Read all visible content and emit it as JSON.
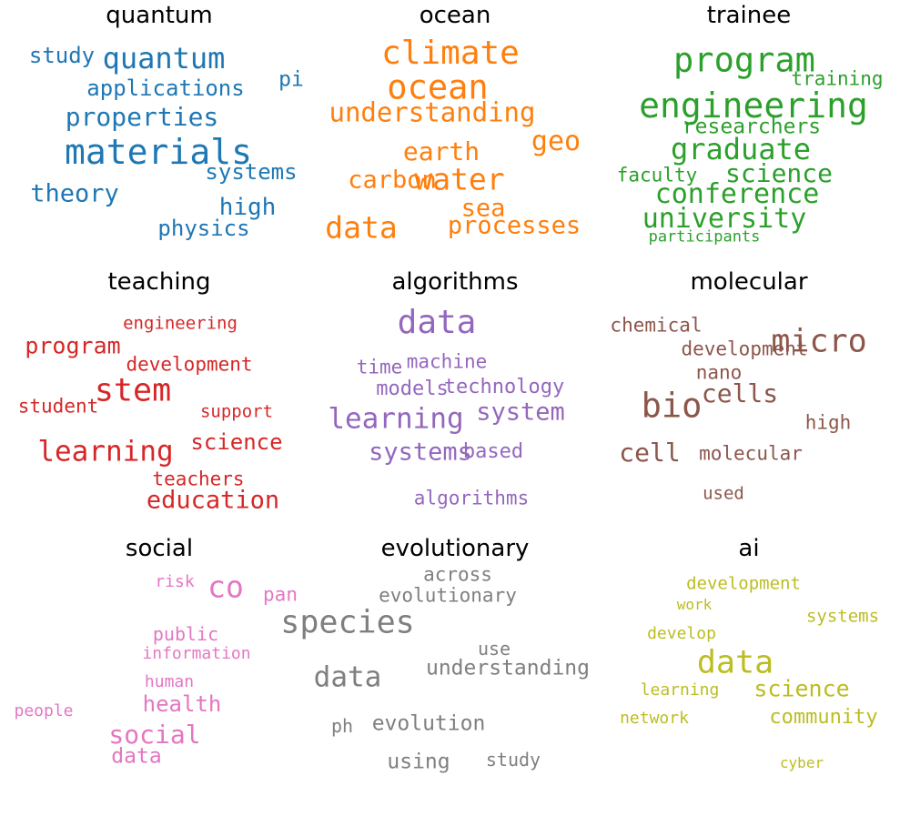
{
  "chart_data": {
    "type": "wordcloud",
    "panels": [
      {
        "title": "quantum",
        "color": "#1f77b4",
        "words": [
          {
            "text": "materials",
            "weight": 1.0
          },
          {
            "text": "quantum",
            "weight": 0.85
          },
          {
            "text": "properties",
            "weight": 0.72
          },
          {
            "text": "theory",
            "weight": 0.68
          },
          {
            "text": "high",
            "weight": 0.66
          },
          {
            "text": "applications",
            "weight": 0.6
          },
          {
            "text": "study",
            "weight": 0.6
          },
          {
            "text": "systems",
            "weight": 0.6
          },
          {
            "text": "physics",
            "weight": 0.6
          },
          {
            "text": "pi",
            "weight": 0.58
          }
        ]
      },
      {
        "title": "ocean",
        "color": "#ff7f0e",
        "words": [
          {
            "text": "ocean",
            "weight": 1.0
          },
          {
            "text": "climate",
            "weight": 0.95
          },
          {
            "text": "water",
            "weight": 0.88
          },
          {
            "text": "data",
            "weight": 0.88
          },
          {
            "text": "understanding",
            "weight": 0.8
          },
          {
            "text": "geo",
            "weight": 0.8
          },
          {
            "text": "earth",
            "weight": 0.75
          },
          {
            "text": "carbon",
            "weight": 0.72
          },
          {
            "text": "sea",
            "weight": 0.72
          },
          {
            "text": "processes",
            "weight": 0.72
          }
        ]
      },
      {
        "title": "trainee",
        "color": "#2ca02c",
        "words": [
          {
            "text": "engineering",
            "weight": 1.0
          },
          {
            "text": "program",
            "weight": 1.0
          },
          {
            "text": "graduate",
            "weight": 0.88
          },
          {
            "text": "conference",
            "weight": 0.85
          },
          {
            "text": "university",
            "weight": 0.85
          },
          {
            "text": "science",
            "weight": 0.8
          },
          {
            "text": "researchers",
            "weight": 0.65
          },
          {
            "text": "faculty",
            "weight": 0.58
          },
          {
            "text": "training",
            "weight": 0.58
          },
          {
            "text": "participants",
            "weight": 0.48
          }
        ]
      },
      {
        "title": "teaching",
        "color": "#d62728",
        "words": [
          {
            "text": "stem",
            "weight": 1.0
          },
          {
            "text": "learning",
            "weight": 0.9
          },
          {
            "text": "education",
            "weight": 0.78
          },
          {
            "text": "program",
            "weight": 0.75
          },
          {
            "text": "science",
            "weight": 0.72
          },
          {
            "text": "development",
            "weight": 0.65
          },
          {
            "text": "student",
            "weight": 0.65
          },
          {
            "text": "teachers",
            "weight": 0.65
          },
          {
            "text": "engineering",
            "weight": 0.6
          },
          {
            "text": "support",
            "weight": 0.6
          }
        ]
      },
      {
        "title": "algorithms",
        "color": "#9467bd",
        "words": [
          {
            "text": "data",
            "weight": 1.0
          },
          {
            "text": "learning",
            "weight": 0.85
          },
          {
            "text": "system",
            "weight": 0.78
          },
          {
            "text": "systems",
            "weight": 0.75
          },
          {
            "text": "models",
            "weight": 0.68
          },
          {
            "text": "technology",
            "weight": 0.68
          },
          {
            "text": "based",
            "weight": 0.68
          },
          {
            "text": "machine",
            "weight": 0.66
          },
          {
            "text": "time",
            "weight": 0.65
          },
          {
            "text": "algorithms",
            "weight": 0.65
          }
        ]
      },
      {
        "title": "molecular",
        "color": "#8c564b",
        "words": [
          {
            "text": "micro",
            "weight": 1.0
          },
          {
            "text": "bio",
            "weight": 1.0
          },
          {
            "text": "cells",
            "weight": 0.8
          },
          {
            "text": "cell",
            "weight": 0.8
          },
          {
            "text": "development",
            "weight": 0.66
          },
          {
            "text": "chemical",
            "weight": 0.65
          },
          {
            "text": "nano",
            "weight": 0.65
          },
          {
            "text": "high",
            "weight": 0.65
          },
          {
            "text": "molecular",
            "weight": 0.65
          },
          {
            "text": "used",
            "weight": 0.6
          }
        ]
      },
      {
        "title": "social",
        "color": "#e377c2",
        "words": [
          {
            "text": "co",
            "weight": 1.0
          },
          {
            "text": "social",
            "weight": 0.85
          },
          {
            "text": "health",
            "weight": 0.78
          },
          {
            "text": "data",
            "weight": 0.75
          },
          {
            "text": "pan",
            "weight": 0.72
          },
          {
            "text": "public",
            "weight": 0.66
          },
          {
            "text": "information",
            "weight": 0.58
          },
          {
            "text": "human",
            "weight": 0.58
          },
          {
            "text": "people",
            "weight": 0.56
          },
          {
            "text": "risk",
            "weight": 0.56
          }
        ]
      },
      {
        "title": "evolutionary",
        "color": "#7f7f7f",
        "words": [
          {
            "text": "species",
            "weight": 1.0
          },
          {
            "text": "data",
            "weight": 0.88
          },
          {
            "text": "understanding",
            "weight": 0.7
          },
          {
            "text": "evolution",
            "weight": 0.7
          },
          {
            "text": "using",
            "weight": 0.7
          },
          {
            "text": "evolutionary",
            "weight": 0.62
          },
          {
            "text": "across",
            "weight": 0.62
          },
          {
            "text": "use",
            "weight": 0.6
          },
          {
            "text": "ph",
            "weight": 0.6
          },
          {
            "text": "study",
            "weight": 0.6
          }
        ]
      },
      {
        "title": "ai",
        "color": "#bcbd22",
        "words": [
          {
            "text": "data",
            "weight": 1.0
          },
          {
            "text": "science",
            "weight": 0.75
          },
          {
            "text": "community",
            "weight": 0.68
          },
          {
            "text": "development",
            "weight": 0.6
          },
          {
            "text": "systems",
            "weight": 0.58
          },
          {
            "text": "develop",
            "weight": 0.56
          },
          {
            "text": "learning",
            "weight": 0.56
          },
          {
            "text": "network",
            "weight": 0.56
          },
          {
            "text": "work",
            "weight": 0.5
          },
          {
            "text": "cyber",
            "weight": 0.5
          }
        ]
      }
    ]
  }
}
